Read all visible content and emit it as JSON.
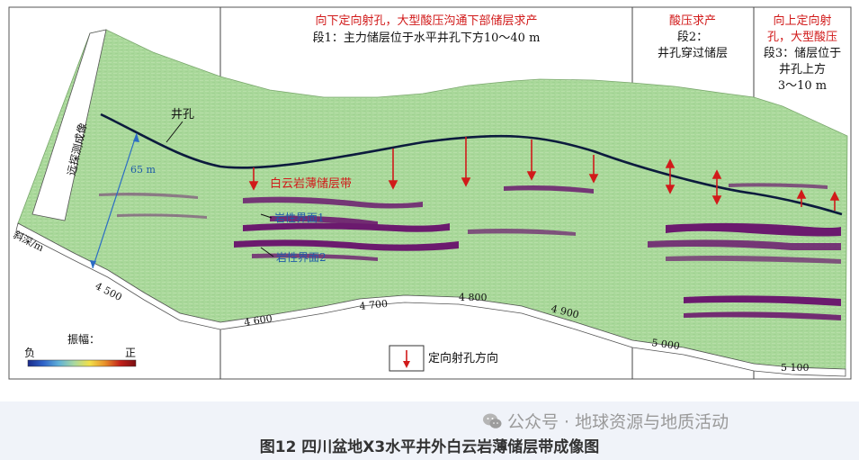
{
  "figure": {
    "header_mid": {
      "line1": "向下定向射孔，大型酸压沟通下部储层求产",
      "line2": "段1：主力储层位于水平井孔下方10～40 m"
    },
    "header_seg2": {
      "line1": "酸压求产",
      "line2": "段2：",
      "line3": "井孔穿过储层"
    },
    "header_seg3": {
      "line1": "向上定向射",
      "line2": "孔，大型酸压",
      "line3": "段3：储层位于",
      "line4": "井孔上方",
      "line5": "3～10 m"
    },
    "labels": {
      "well": "井孔",
      "reservoir_zone": "白云岩薄储层带",
      "interface1": "岩性界面1",
      "interface2": "岩性界面2",
      "distance": "65 m",
      "side_axis": "远探测成像",
      "depth_axis": "斜深/m"
    },
    "depth_ticks": [
      "4 500",
      "4 600",
      "4 700",
      "4 800",
      "4 900",
      "5 000",
      "5 100"
    ],
    "colorbar": {
      "title": "振幅：",
      "neg": "负",
      "pos": "正",
      "colors": [
        "#1a2a8a",
        "#2f63c9",
        "#5fb0d8",
        "#a8d8a0",
        "#f2e04a",
        "#e8902a",
        "#c2201a",
        "#7a0f12"
      ]
    },
    "legend": {
      "label": "定向射孔方向"
    },
    "colors": {
      "section_fill": "#a9d89a",
      "reflector": "#6b1a6e",
      "well_line": "#0c1b3d",
      "perforation_arrow": "#d11a1a",
      "red_text": "#d11a1a",
      "blue_text": "#1f5ca8",
      "distance_line": "#2b6cc4"
    }
  },
  "caption": {
    "title": "图12 四川盆地X3水平井外白云岩薄储层带成像图",
    "watermark": "公众号 · 地球资源与地质活动"
  }
}
